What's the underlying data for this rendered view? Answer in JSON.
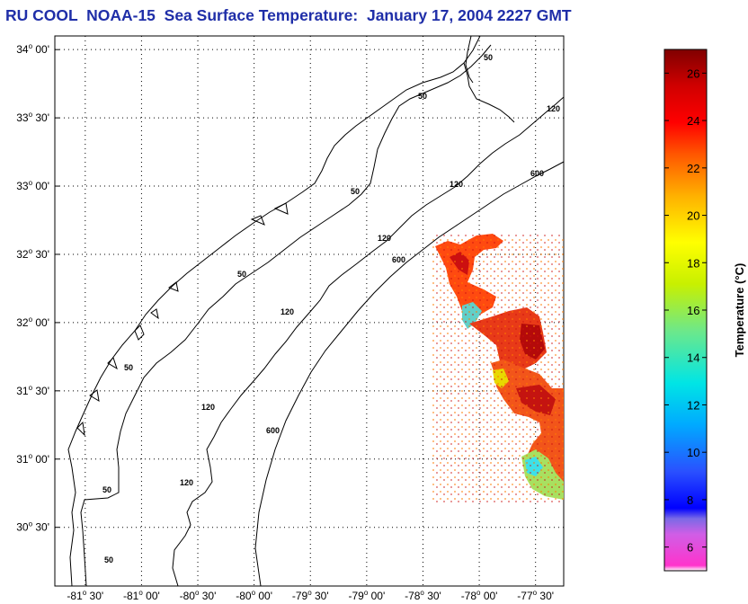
{
  "title": "RU COOL  NOAA-15  Sea Surface Temperature:  January 17, 2004 2227 GMT",
  "map": {
    "lat_labels": [
      {
        "deg": "34",
        "min": "00'",
        "value": 34.0
      },
      {
        "deg": "33",
        "min": "30'",
        "value": 33.5
      },
      {
        "deg": "33",
        "min": "00'",
        "value": 33.0
      },
      {
        "deg": "32",
        "min": "30'",
        "value": 32.5
      },
      {
        "deg": "32",
        "min": "00'",
        "value": 32.0
      },
      {
        "deg": "31",
        "min": "30'",
        "value": 31.5
      },
      {
        "deg": "31",
        "min": "00'",
        "value": 31.0
      },
      {
        "deg": "30",
        "min": "30'",
        "value": 30.5
      }
    ],
    "lon_labels": [
      {
        "deg": "-81",
        "min": "30'",
        "value": -81.5
      },
      {
        "deg": "-81",
        "min": "00'",
        "value": -81.0
      },
      {
        "deg": "-80",
        "min": "30'",
        "value": -80.5
      },
      {
        "deg": "-80",
        "min": "00'",
        "value": -80.0
      },
      {
        "deg": "-79",
        "min": "30'",
        "value": -79.5
      },
      {
        "deg": "-79",
        "min": "00'",
        "value": -79.0
      },
      {
        "deg": "-78",
        "min": "30'",
        "value": -78.5
      },
      {
        "deg": "-78",
        "min": "00'",
        "value": -78.0
      },
      {
        "deg": "-77",
        "min": "30'",
        "value": -77.5
      }
    ],
    "isobath_labels": [
      "50",
      "50",
      "50",
      "50",
      "50",
      "50",
      "50",
      "120",
      "120",
      "120",
      "120",
      "120",
      "120",
      "600",
      "600",
      "600"
    ]
  },
  "colorbar": {
    "label": "Temperature (°C)",
    "ticks": [
      "6",
      "8",
      "10",
      "12",
      "14",
      "16",
      "18",
      "20",
      "22",
      "24",
      "26"
    ],
    "min": 5,
    "max": 27
  }
}
